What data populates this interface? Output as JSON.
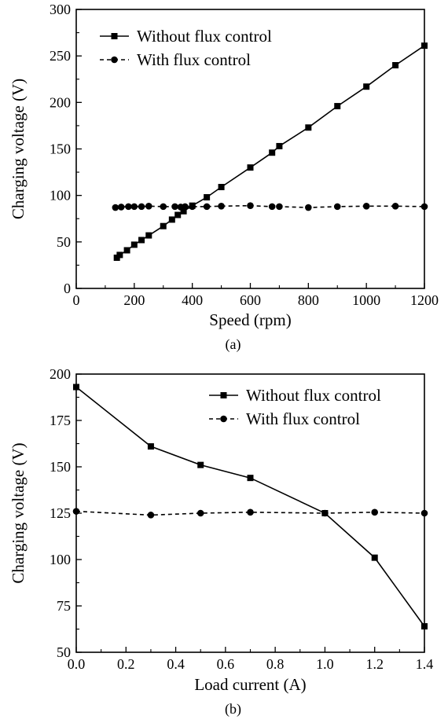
{
  "chart_data": [
    {
      "type": "line",
      "panel_label": "(a)",
      "xlabel": "Speed (rpm)",
      "ylabel": "Charging voltage (V)",
      "xlim": [
        0,
        1200
      ],
      "ylim": [
        0,
        300
      ],
      "xticks": [
        0,
        200,
        400,
        600,
        800,
        1000,
        1200
      ],
      "yticks": [
        0,
        50,
        100,
        150,
        200,
        250,
        300
      ],
      "legend_position": "top-left",
      "grid": false,
      "series": [
        {
          "name": "Without flux control",
          "marker": "square",
          "line_style": "solid",
          "x": [
            140,
            150,
            175,
            200,
            225,
            250,
            300,
            330,
            350,
            370,
            400,
            450,
            500,
            600,
            675,
            700,
            800,
            900,
            1000,
            1100,
            1200
          ],
          "y": [
            33,
            36,
            41,
            47,
            52,
            57,
            67,
            74,
            79,
            83,
            89,
            98,
            109,
            130,
            146,
            153,
            173,
            196,
            217,
            240,
            261
          ]
        },
        {
          "name": "With flux control",
          "marker": "circle",
          "line_style": "dashed",
          "x": [
            135,
            155,
            180,
            200,
            225,
            250,
            300,
            340,
            360,
            375,
            400,
            450,
            500,
            600,
            675,
            700,
            800,
            900,
            1000,
            1100,
            1200
          ],
          "y": [
            87,
            87.5,
            88,
            88,
            88,
            88.5,
            88,
            88,
            87.5,
            88,
            88,
            88,
            88.5,
            89,
            88,
            88,
            87,
            88,
            88.5,
            88.5,
            88
          ]
        }
      ]
    },
    {
      "type": "line",
      "panel_label": "(b)",
      "xlabel": "Load current (A)",
      "ylabel": "Charging voltage (V)",
      "xlim": [
        0.0,
        1.4
      ],
      "ylim": [
        50,
        200
      ],
      "xticks": [
        0.0,
        0.2,
        0.4,
        0.6,
        0.8,
        1.0,
        1.2,
        1.4
      ],
      "yticks": [
        50,
        75,
        100,
        125,
        150,
        175,
        200
      ],
      "legend_position": "top-right",
      "grid": false,
      "series": [
        {
          "name": "Without flux control",
          "marker": "square",
          "line_style": "solid",
          "x": [
            0.0,
            0.3,
            0.5,
            0.7,
            1.0,
            1.2,
            1.4
          ],
          "y": [
            193,
            161,
            151,
            144,
            125,
            101,
            64
          ]
        },
        {
          "name": "With flux control",
          "marker": "circle",
          "line_style": "dashed",
          "x": [
            0.0,
            0.3,
            0.5,
            0.7,
            1.0,
            1.2,
            1.4
          ],
          "y": [
            126,
            124,
            125,
            125.5,
            125,
            125.5,
            125
          ]
        }
      ]
    }
  ]
}
